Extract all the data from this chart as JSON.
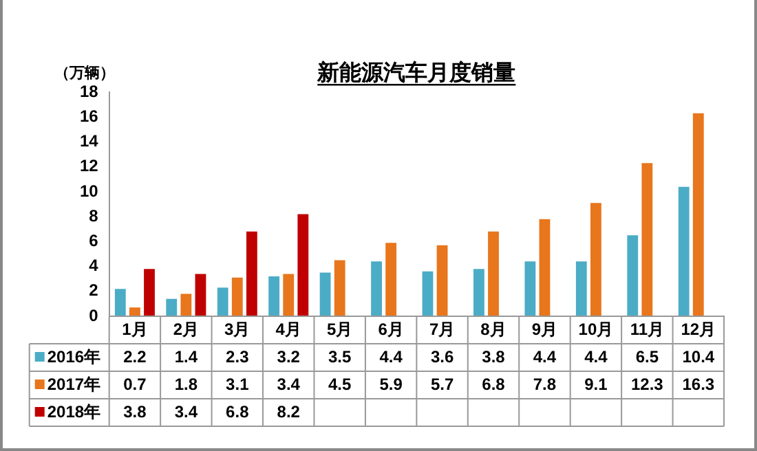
{
  "chart_data": {
    "type": "bar",
    "title": "新能源汽车月度销量",
    "ylabel": "（万辆）",
    "categories": [
      "1月",
      "2月",
      "3月",
      "4月",
      "5月",
      "6月",
      "7月",
      "8月",
      "9月",
      "10月",
      "11月",
      "12月"
    ],
    "series": [
      {
        "name": "2016年",
        "color": "#4bacc6",
        "values": [
          2.2,
          1.4,
          2.3,
          3.2,
          3.5,
          4.4,
          3.6,
          3.8,
          4.4,
          4.4,
          6.5,
          10.4
        ]
      },
      {
        "name": "2017年",
        "color": "#e8761c",
        "values": [
          0.7,
          1.8,
          3.1,
          3.4,
          4.5,
          5.9,
          5.7,
          6.8,
          7.8,
          9.1,
          12.3,
          16.3
        ]
      },
      {
        "name": "2018年",
        "color": "#c00000",
        "values": [
          3.8,
          3.4,
          6.8,
          8.2,
          null,
          null,
          null,
          null,
          null,
          null,
          null,
          null
        ]
      }
    ],
    "ylim": [
      0,
      18
    ],
    "yticks": [
      0,
      2,
      4,
      6,
      8,
      10,
      12,
      14,
      16,
      18
    ],
    "grid": false,
    "legend": "bottom left",
    "data_labels": true
  }
}
